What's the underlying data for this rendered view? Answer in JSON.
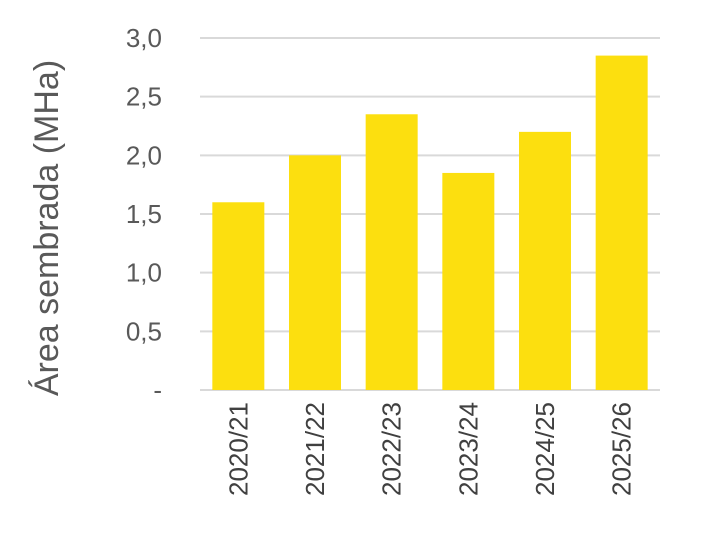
{
  "chart_data": {
    "type": "bar",
    "categories": [
      "2020/21",
      "2021/22",
      "2022/23",
      "2023/24",
      "2024/25",
      "2025/26"
    ],
    "values": [
      1.6,
      2.0,
      2.35,
      1.85,
      2.2,
      2.85
    ],
    "title": "",
    "xlabel": "",
    "ylabel": "Área sembrada (MHa)",
    "ylim": [
      0,
      3.0
    ],
    "yticks": [
      {
        "value": 0,
        "label": "-"
      },
      {
        "value": 0.5,
        "label": "0,5"
      },
      {
        "value": 1.0,
        "label": "1,0"
      },
      {
        "value": 1.5,
        "label": "1,5"
      },
      {
        "value": 2.0,
        "label": "2,0"
      },
      {
        "value": 2.5,
        "label": "2,5"
      },
      {
        "value": 3.0,
        "label": "3,0"
      }
    ],
    "grid": true,
    "bar_color": "#fcdf0f"
  }
}
